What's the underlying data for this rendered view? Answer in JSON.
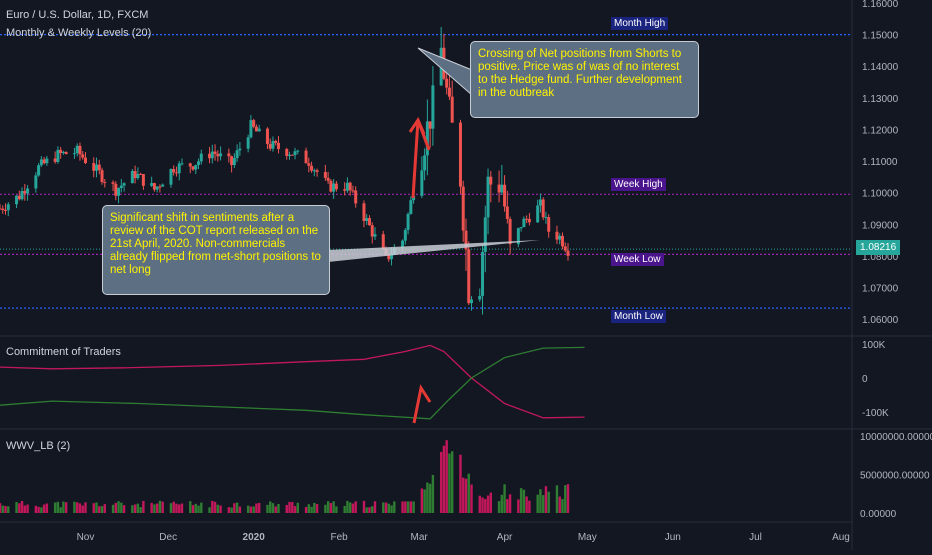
{
  "symbol_title": "Euro / U.S. Dollar, 1D, FXCM",
  "main_indicator": "Monthly & Weekly Levels (20)",
  "cot_title": "Commitment of Traders",
  "vol_title": "WWV_LB (2)",
  "current_price": "1.08216",
  "level_labels": {
    "month_high": "Month High",
    "week_high": "Week High",
    "week_low": "Week Low",
    "month_low": "Month Low"
  },
  "callouts": {
    "top": "Crossing of Net positions from Shorts to positive. Price was of was of no interest to the Hedge fund. Further development in the outbreak",
    "left": "Significant shift in sentiments after a review of the COT report released on the 21st April, 2020. Non-commercials already flipped from net-short positions to net long"
  },
  "colors": {
    "background": "#131722",
    "up_candle": "#26a69a",
    "down_candle": "#ef5350",
    "month_level": "#2962ff",
    "week_level": "#9c27b0",
    "cot_red": "#c2185b",
    "cot_green": "#2e7d32",
    "arrow": "#e53935"
  },
  "chart_data": [
    {
      "type": "candlestick",
      "title": "Euro / U.S. Dollar, 1D, FXCM",
      "ylim": [
        1.055,
        1.16
      ],
      "y_ticks": [
        "1.16000",
        "1.15000",
        "1.14000",
        "1.13000",
        "1.12000",
        "1.11000",
        "1.10000",
        "1.09000",
        "1.08000",
        "1.07000",
        "1.06000"
      ],
      "x_ticks": [
        "Nov",
        "Dec",
        "2020",
        "Feb",
        "Mar",
        "Apr",
        "May",
        "Jun",
        "Jul",
        "Aug"
      ],
      "levels": {
        "month_high": 1.15,
        "week_high": 1.0995,
        "week_low": 1.0805,
        "month_low": 1.0635
      },
      "close_path": [
        {
          "date": "2019-10-01",
          "close": 1.095
        },
        {
          "date": "2019-10-08",
          "close": 1.099
        },
        {
          "date": "2019-10-15",
          "close": 1.108
        },
        {
          "date": "2019-10-22",
          "close": 1.112
        },
        {
          "date": "2019-10-29",
          "close": 1.113
        },
        {
          "date": "2019-11-05",
          "close": 1.107
        },
        {
          "date": "2019-11-12",
          "close": 1.101
        },
        {
          "date": "2019-11-19",
          "close": 1.106
        },
        {
          "date": "2019-11-26",
          "close": 1.101
        },
        {
          "date": "2019-12-03",
          "close": 1.108
        },
        {
          "date": "2019-12-10",
          "close": 1.109
        },
        {
          "date": "2019-12-17",
          "close": 1.113
        },
        {
          "date": "2019-12-24",
          "close": 1.109
        },
        {
          "date": "2019-12-31",
          "close": 1.121
        },
        {
          "date": "2020-01-07",
          "close": 1.115
        },
        {
          "date": "2020-01-14",
          "close": 1.113
        },
        {
          "date": "2020-01-21",
          "close": 1.11
        },
        {
          "date": "2020-01-28",
          "close": 1.102
        },
        {
          "date": "2020-02-04",
          "close": 1.102
        },
        {
          "date": "2020-02-11",
          "close": 1.091
        },
        {
          "date": "2020-02-18",
          "close": 1.079
        },
        {
          "date": "2020-02-24",
          "close": 1.085
        },
        {
          "date": "2020-03-02",
          "close": 1.113
        },
        {
          "date": "2020-03-06",
          "close": 1.128
        },
        {
          "date": "2020-03-09",
          "close": 1.145
        },
        {
          "date": "2020-03-12",
          "close": 1.125
        },
        {
          "date": "2020-03-16",
          "close": 1.105
        },
        {
          "date": "2020-03-19",
          "close": 1.07
        },
        {
          "date": "2020-03-23",
          "close": 1.072
        },
        {
          "date": "2020-03-26",
          "close": 1.103
        },
        {
          "date": "2020-03-31",
          "close": 1.103
        },
        {
          "date": "2020-04-03",
          "close": 1.081
        },
        {
          "date": "2020-04-07",
          "close": 1.09
        },
        {
          "date": "2020-04-14",
          "close": 1.096
        },
        {
          "date": "2020-04-17",
          "close": 1.088
        },
        {
          "date": "2020-04-21",
          "close": 1.086
        },
        {
          "date": "2020-04-24",
          "close": 1.082
        }
      ]
    },
    {
      "type": "line",
      "title": "Commitment of Traders",
      "y_ticks": [
        "100K",
        "0",
        "-100K"
      ],
      "series": []
    },
    {
      "type": "bar",
      "title": "WWV_LB (2)",
      "y_ticks": [
        "10000000.00000",
        "5000000.00000",
        "0.00000"
      ],
      "ylim": [
        0,
        10000000
      ]
    }
  ]
}
